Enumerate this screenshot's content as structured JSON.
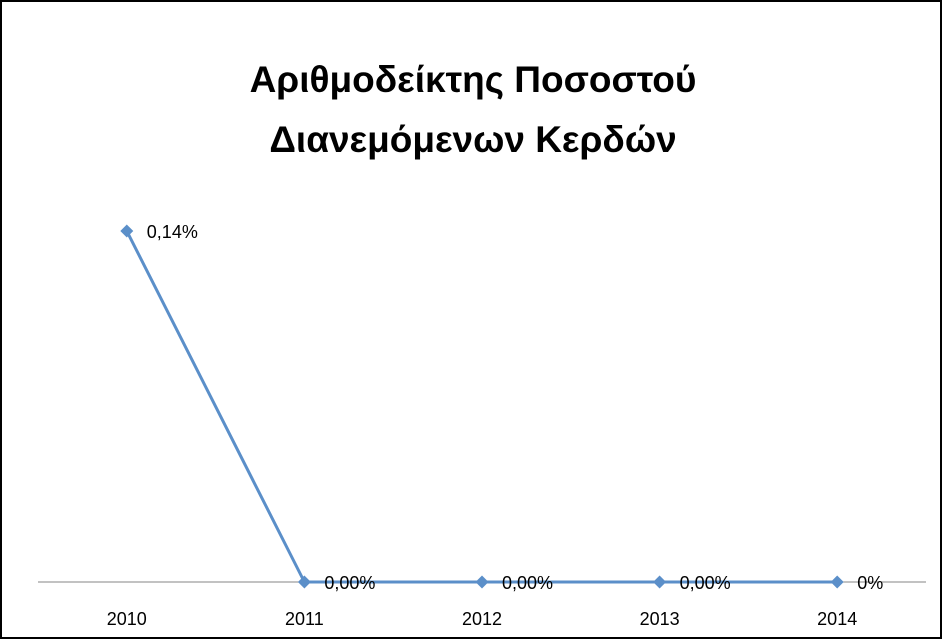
{
  "chart_data": {
    "type": "line",
    "title_lines": [
      "Αριθμοδείκτης Ποσοστού",
      "Διανεμόμενων Κερδών"
    ],
    "categories": [
      "2010",
      "2011",
      "2012",
      "2013",
      "2014"
    ],
    "values": [
      0.14,
      0.0,
      0.0,
      0.0,
      0.0
    ],
    "data_labels": [
      "0,14%",
      "0,00%",
      "0,00%",
      "0,00%",
      "0%"
    ],
    "unit": "%",
    "xlabel": "",
    "ylabel": "",
    "ylim": [
      0,
      0.14
    ],
    "grid": false,
    "legend": "none",
    "series_color": "#5b8fc9",
    "axis_color": "#868686"
  }
}
